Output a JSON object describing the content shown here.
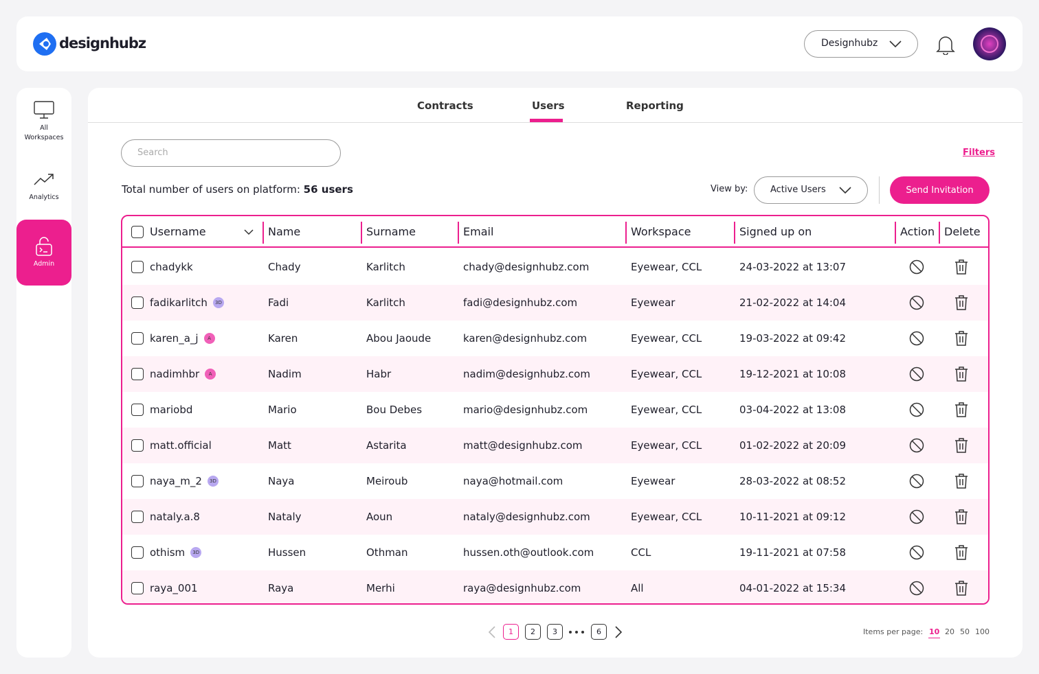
{
  "header": {
    "brand": "designhubz",
    "workspace": "Designhubz"
  },
  "sidebar": [
    {
      "label": "All Workspaces"
    },
    {
      "label": "Analytics"
    },
    {
      "label": "Admin"
    }
  ],
  "tabs": [
    "Contracts",
    "Users",
    "Reporting"
  ],
  "search_placeholder": "Search",
  "filters": "Filters",
  "total": {
    "label": "Total number of users on platform:",
    "count": 56,
    "unit": "users"
  },
  "view_by": {
    "label": "View by:",
    "value": "Active Users"
  },
  "send_invitation": "Send Invitation",
  "table": {
    "columns": [
      "Username",
      "Name",
      "Surname",
      "Email",
      "Workspace",
      "Signed up on",
      "Action",
      "Delete"
    ],
    "rows": [
      {
        "username": "chadykk",
        "name": "Chady",
        "surname": "Karlitch",
        "email": "chady@designhubz.com",
        "workspace": "Eyewear, CCL",
        "signed_up": "24-03-2022 at 13:07"
      },
      {
        "username": "fadikarlitch",
        "badge": "3D",
        "name": "Fadi",
        "surname": "Karlitch",
        "email": "fadi@designhubz.com",
        "workspace": "Eyewear",
        "signed_up": "21-02-2022 at 14:04"
      },
      {
        "username": "karen_a_j",
        "badge": "A",
        "name": "Karen",
        "surname": "Abou Jaoude",
        "email": "karen@designhubz.com",
        "workspace": "Eyewear, CCL",
        "signed_up": "19-03-2022 at 09:42"
      },
      {
        "username": "nadimhbr",
        "badge": "A",
        "name": "Nadim",
        "surname": "Habr",
        "email": "nadim@designhubz.com",
        "workspace": "Eyewear, CCL",
        "signed_up": "19-12-2021 at 10:08"
      },
      {
        "username": "mariobd",
        "name": "Mario",
        "surname": "Bou Debes",
        "email": "mario@designhubz.com",
        "workspace": "Eyewear, CCL",
        "signed_up": "03-04-2022 at 13:08"
      },
      {
        "username": "matt.official",
        "name": "Matt",
        "surname": "Astarita",
        "email": "matt@designhubz.com",
        "workspace": "Eyewear, CCL",
        "signed_up": "01-02-2022 at 20:09"
      },
      {
        "username": "naya_m_2",
        "badge": "3D",
        "name": "Naya",
        "surname": "Meiroub",
        "email": "naya@hotmail.com",
        "workspace": "Eyewear",
        "signed_up": "28-03-2022 at 08:52"
      },
      {
        "username": "nataly.a.8",
        "name": "Nataly",
        "surname": "Aoun",
        "email": "nataly@designhubz.com",
        "workspace": "Eyewear, CCL",
        "signed_up": "10-11-2021 at 09:12"
      },
      {
        "username": "othism",
        "badge": "3D",
        "name": "Hussen",
        "surname": "Othman",
        "email": "hussen.oth@outlook.com",
        "workspace": "CCL",
        "signed_up": "19-11-2021 at 07:58"
      },
      {
        "username": "raya_001",
        "name": "Raya",
        "surname": "Merhi",
        "email": "raya@designhubz.com",
        "workspace": "All",
        "signed_up": "04-01-2022 at 15:34"
      }
    ]
  },
  "pagination": {
    "pages": [
      1,
      2,
      3,
      6
    ],
    "current": 1
  },
  "items_per_page": {
    "label": "Items per page:",
    "options": [
      10,
      20,
      50,
      100
    ],
    "selected": 10
  }
}
